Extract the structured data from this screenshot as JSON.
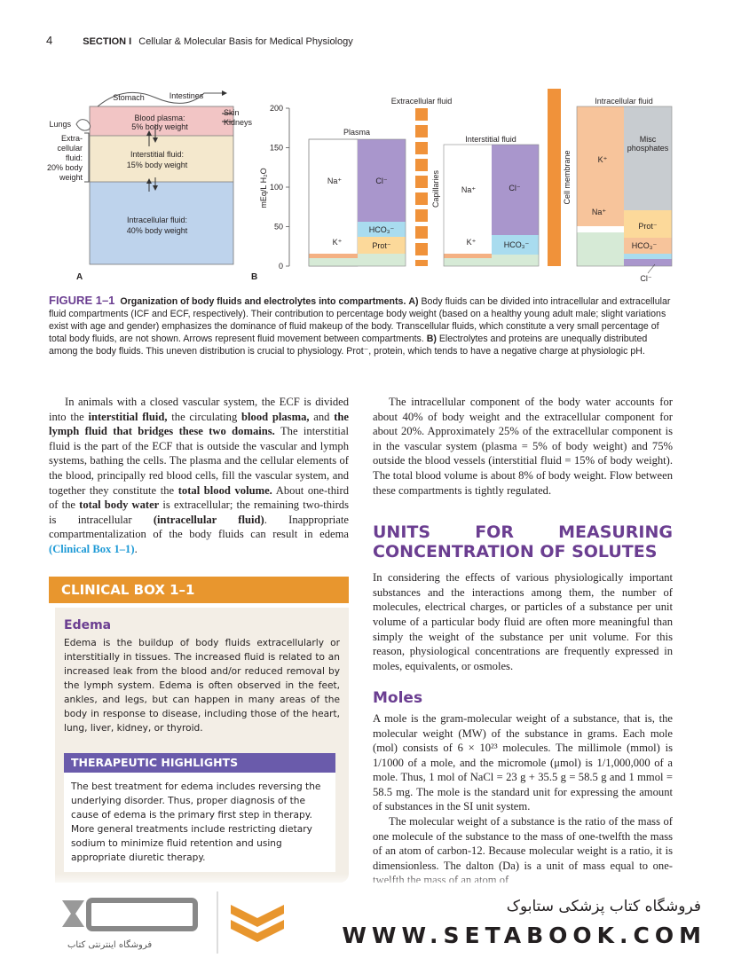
{
  "header": {
    "page_number": "4",
    "section": "SECTION I",
    "section_title": "Cellular & Molecular Basis for Medical Physiology"
  },
  "figure": {
    "panel_a": {
      "letter": "A",
      "stomach": "Stomach",
      "intestines": "Intestines",
      "lungs": "Lungs",
      "skin": "Skin",
      "kidneys": "Kidneys",
      "extracellular": [
        "Extra-",
        "cellular",
        "fluid:",
        "20% body",
        "weight"
      ],
      "plasma": [
        "Blood plasma:",
        "5% body weight"
      ],
      "interstitial": [
        "Interstitial fluid:",
        "15% body weight"
      ],
      "intracellular": [
        "Intracellular fluid:",
        "40% body weight"
      ]
    },
    "panel_b": {
      "letter": "B",
      "y_label": "mEq/L H₂O",
      "ylim": [
        0,
        200
      ],
      "yticks": [
        0,
        50,
        100,
        150,
        200
      ],
      "extracellular": "Extracellular fluid",
      "plasma": "Plasma",
      "interstitial": "Interstitial fluid",
      "intracellular": "Intracellular fluid",
      "capillaries": "Capillaries",
      "cell_membrane": "Cell membrane",
      "plasma_ions": [
        "Na⁺",
        "Cl⁻",
        "HCO₃⁻",
        "K⁺",
        "Prot⁻"
      ],
      "interstitial_ions": [
        "Na⁺",
        "Cl⁻",
        "K⁺",
        "HCO₃⁻"
      ],
      "intracellular_ions": [
        "K⁺",
        "Misc",
        "phosphates",
        "Na⁺",
        "Prot⁻",
        "HCO₃⁻",
        "Cl⁻"
      ]
    },
    "caption": {
      "label": "FIGURE 1–1",
      "title": "Organization of body fluids and electrolytes into compartments.",
      "runs": [
        " ",
        "A)",
        " Body fluids can be divided into intracellular and extracellular fluid compartments (ICF and ECF, respectively). Their contribution to percentage body weight (based on a healthy young adult male; slight variations exist with age and gender) emphasizes the dominance of fluid makeup of the body. Transcellular fluids, which constitute a very small percentage of total body fluids, are not shown. Arrows represent fluid movement between compartments. ",
        "B)",
        " Electrolytes and proteins are unequally distributed among the body fluids. This uneven distribution is crucial to physiology. Prot⁻, protein, which tends to have a negative charge at physiologic pH."
      ]
    }
  },
  "left_column": {
    "runs": [
      "In animals with a closed vascular system, the ECF is divided into the ",
      "interstitial fluid,",
      " the circulating ",
      "blood plasma,",
      " and ",
      "the lymph fluid that bridges these two domains.",
      " The interstitial fluid is the part of the ECF that is outside the vascular and lymph systems, bathing the cells. The plasma and the cellular elements of the blood, principally red blood cells, fill the vascular system, and together they constitute the ",
      "total blood volume.",
      " About one-third of the ",
      "total body water",
      " is extracellular; the remaining two-thirds is intracellular ",
      "(intracellular fluid)",
      ". Inappropriate compartmentalization of the body fluids can result in edema ",
      "(Clinical Box 1–1)",
      "."
    ]
  },
  "clinical_box": {
    "title": "CLINICAL BOX 1–1",
    "subtitle": "Edema",
    "text": "Edema is the buildup of body fluids extracellularly or interstitially in tissues. The increased fluid is related to an increased leak from the blood and/or reduced removal by the lymph system. Edema is often observed in the feet, ankles, and legs, but can happen in many areas of the body in response to disease, including those of the heart, lung, liver, kidney, or thyroid.",
    "highlights_title": "THERAPEUTIC HIGHLIGHTS",
    "highlights_text": "The best treatment for edema includes reversing the underlying disorder. Thus, proper diagnosis of the cause of edema is the primary first step in therapy. More general treatments include restricting dietary sodium to minimize fluid retention and using appropriate diuretic therapy."
  },
  "right_column": {
    "paragraph_1": "The intracellular component of the body water accounts for about 40% of body weight and the extracellular component for about 20%. Approximately 25% of the extracellular component is in the vascular system (plasma = 5% of body weight) and 75% outside the blood vessels (interstitial fluid = 15% of body weight). The total blood volume is about 8% of body weight. Flow between these compartments is tightly regulated.",
    "heading": "UNITS FOR MEASURING CONCENTRATION OF SOLUTES",
    "paragraph_2": "In considering the effects of various physiologically important substances and the interactions among them, the number of molecules, electrical charges, or particles of a substance per unit volume of a particular body fluid are often more meaningful than simply the weight of the substance per unit volume. For this reason, physiological concentrations are frequently expressed in moles, equivalents, or osmoles.",
    "subheading": "Moles",
    "paragraph_3": "A mole is the gram-molecular weight of a substance, that is, the molecular weight (MW) of the substance in grams. Each mole (mol) consists of 6 × 10²³ molecules. The millimole (mmol) is 1/1000 of a mole, and the micromole (μmol) is 1/1,000,000 of a mole. Thus, 1 mol of NaCl = 23 g + 35.5 g = 58.5 g and 1 mmol = 58.5 mg. The mole is the standard unit for expressing the amount of substances in the SI unit system.",
    "paragraph_4": "The molecular weight of a substance is the ratio of the mass of one molecule of the substance to the mass of one-twelfth the mass of an atom of carbon-12. Because molecular weight is a ratio, it is dimensionless. The dalton (Da) is a unit of mass equal to one-twelfth the mass of an atom of"
  },
  "footer": {
    "store_name": "فروشگاه کتاب پزشکی ستابوک",
    "website": "WWW.SETABOOK.COM",
    "logo_caption": "فروشگاه اینترنتی کتاب"
  }
}
